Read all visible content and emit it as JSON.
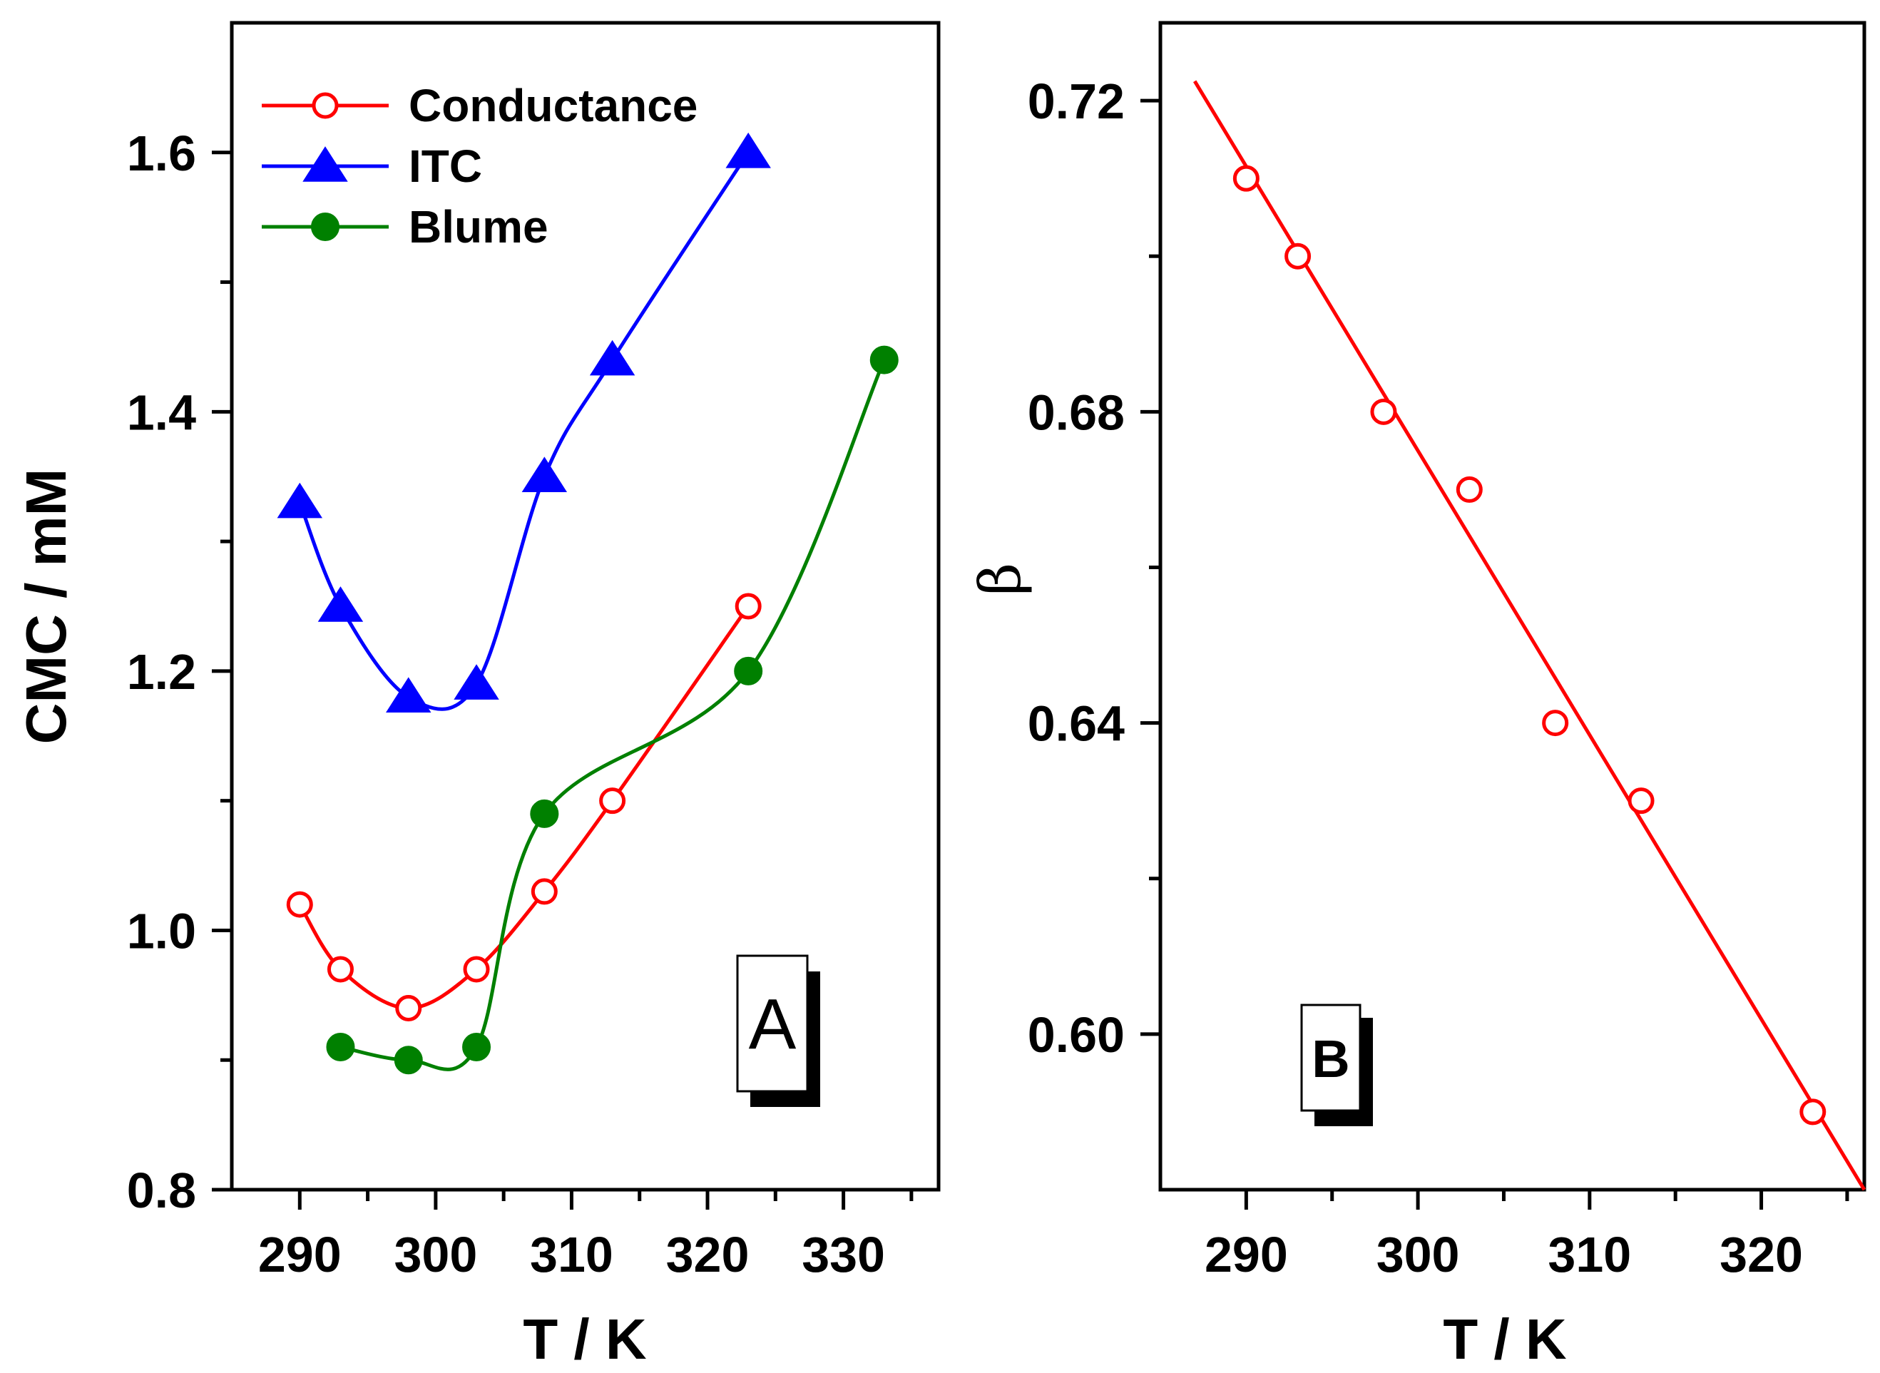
{
  "chart_data": [
    {
      "panel": "A",
      "type": "line",
      "panel_label": "A",
      "xlabel": "T / K",
      "ylabel": "CMC / mM",
      "xlim": [
        285,
        337
      ],
      "ylim": [
        0.8,
        1.7
      ],
      "xticks": [
        290,
        300,
        310,
        320,
        330
      ],
      "yticks": [
        0.8,
        1.0,
        1.2,
        1.4,
        1.6
      ],
      "xtick_labels": [
        "290",
        "300",
        "310",
        "320",
        "330"
      ],
      "ytick_labels": [
        "0.8",
        "1.0",
        "1.2",
        "1.4",
        "1.6"
      ],
      "legend_position": "top-left",
      "series": [
        {
          "name": "Conductance",
          "color": "#ff0000",
          "marker": "open-circle",
          "x": [
            290,
            293,
            298,
            303,
            308,
            313,
            323
          ],
          "y": [
            1.02,
            0.97,
            0.94,
            0.97,
            1.03,
            1.1,
            1.25
          ]
        },
        {
          "name": "ITC",
          "color": "#0000ff",
          "marker": "filled-triangle",
          "x": [
            290,
            293,
            298,
            303,
            308,
            313,
            323
          ],
          "y": [
            1.33,
            1.25,
            1.18,
            1.19,
            1.35,
            1.44,
            1.6
          ]
        },
        {
          "name": "Blume",
          "color": "#008000",
          "marker": "filled-circle",
          "x": [
            293,
            298,
            303,
            308,
            323,
            333
          ],
          "y": [
            0.91,
            0.9,
            0.91,
            1.09,
            1.2,
            1.44
          ]
        }
      ]
    },
    {
      "panel": "B",
      "type": "scatter",
      "panel_label": "B",
      "xlabel": "T / K",
      "ylabel": "β",
      "xlim": [
        285,
        326
      ],
      "ylim": [
        0.58,
        0.73
      ],
      "xticks": [
        290,
        300,
        310,
        320
      ],
      "yticks": [
        0.6,
        0.64,
        0.68,
        0.72
      ],
      "xtick_labels": [
        "290",
        "300",
        "310",
        "320"
      ],
      "ytick_labels": [
        "0.60",
        "0.64",
        "0.68",
        "0.72"
      ],
      "series": [
        {
          "name": "β",
          "color": "#ff0000",
          "marker": "open-circle",
          "x": [
            290,
            293,
            298,
            303,
            308,
            313,
            323
          ],
          "y": [
            0.71,
            0.7,
            0.68,
            0.67,
            0.64,
            0.63,
            0.59
          ]
        }
      ],
      "fit_line": {
        "x": [
          287,
          326
        ],
        "y": [
          0.7225,
          0.58
        ],
        "color": "#ff0000"
      }
    }
  ]
}
